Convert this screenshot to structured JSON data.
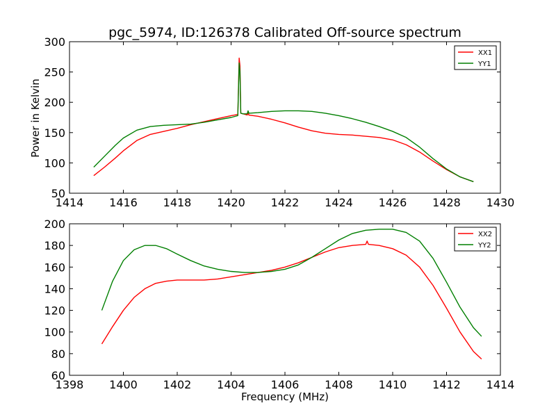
{
  "chart_data": [
    {
      "type": "line",
      "title": "pgc_5974, ID:126378 Calibrated Off-source spectrum",
      "xlabel": "",
      "ylabel": "Power in Kelvin",
      "xlim": [
        1414,
        1430
      ],
      "ylim": [
        50,
        300
      ],
      "xticks": [
        1414,
        1416,
        1418,
        1420,
        1422,
        1424,
        1426,
        1428,
        1430
      ],
      "yticks": [
        50,
        100,
        150,
        200,
        250,
        300
      ],
      "legend": "top-right",
      "series": [
        {
          "name": "XX1",
          "color": "#ff0000",
          "x": [
            1414.9,
            1415.3,
            1415.7,
            1416.0,
            1416.5,
            1417.0,
            1417.5,
            1418.0,
            1418.5,
            1419.0,
            1419.5,
            1420.0,
            1420.25,
            1420.3,
            1420.33,
            1420.36,
            1420.45,
            1420.6,
            1420.63,
            1420.66,
            1421.0,
            1421.5,
            1422.0,
            1422.5,
            1423.0,
            1423.5,
            1424.0,
            1424.5,
            1425.0,
            1425.5,
            1426.0,
            1426.5,
            1427.0,
            1427.5,
            1428.0,
            1428.5,
            1429.0
          ],
          "y": [
            79,
            93,
            108,
            120,
            137,
            147,
            152,
            157,
            163,
            168,
            173,
            178,
            180,
            273,
            260,
            182,
            181,
            179,
            183,
            179,
            177,
            172,
            166,
            159,
            153,
            149,
            147,
            146,
            144,
            142,
            138,
            130,
            118,
            103,
            89,
            77,
            69
          ]
        },
        {
          "name": "YY1",
          "color": "#007f00",
          "x": [
            1414.9,
            1415.3,
            1415.7,
            1416.0,
            1416.5,
            1417.0,
            1417.5,
            1418.0,
            1418.5,
            1419.0,
            1419.5,
            1420.0,
            1420.25,
            1420.3,
            1420.33,
            1420.36,
            1420.45,
            1420.6,
            1420.63,
            1420.66,
            1421.0,
            1421.5,
            1422.0,
            1422.5,
            1423.0,
            1423.5,
            1424.0,
            1424.5,
            1425.0,
            1425.5,
            1426.0,
            1426.5,
            1427.0,
            1427.5,
            1428.0,
            1428.5,
            1429.0
          ],
          "y": [
            93,
            111,
            129,
            141,
            154,
            160,
            162,
            163,
            164,
            167,
            171,
            175,
            178,
            265,
            250,
            182,
            181,
            181,
            186,
            182,
            183,
            185,
            186,
            186,
            185,
            182,
            178,
            173,
            167,
            160,
            152,
            142,
            126,
            107,
            90,
            77,
            69
          ]
        }
      ]
    },
    {
      "type": "line",
      "title": "",
      "xlabel": "Frequency (MHz)",
      "ylabel": "",
      "xlim": [
        1398,
        1414
      ],
      "ylim": [
        60,
        200
      ],
      "xticks": [
        1398,
        1400,
        1402,
        1404,
        1406,
        1408,
        1410,
        1412,
        1414
      ],
      "yticks": [
        60,
        80,
        100,
        120,
        140,
        160,
        180,
        200
      ],
      "legend": "top-right",
      "series": [
        {
          "name": "XX2",
          "color": "#ff0000",
          "x": [
            1399.2,
            1399.6,
            1400.0,
            1400.4,
            1400.8,
            1401.2,
            1401.6,
            1402.0,
            1402.5,
            1403.0,
            1403.5,
            1404.0,
            1404.5,
            1405.0,
            1405.5,
            1406.0,
            1406.5,
            1407.0,
            1407.5,
            1408.0,
            1408.5,
            1409.0,
            1409.05,
            1409.1,
            1409.5,
            1410.0,
            1410.5,
            1411.0,
            1411.5,
            1412.0,
            1412.5,
            1413.0,
            1413.3
          ],
          "y": [
            89,
            105,
            120,
            132,
            140,
            145,
            147,
            148,
            148,
            148,
            149,
            151,
            153,
            155,
            157,
            160,
            164,
            169,
            174,
            178,
            180,
            181,
            184,
            181,
            180,
            177,
            171,
            160,
            143,
            122,
            100,
            82,
            75
          ]
        },
        {
          "name": "YY2",
          "color": "#007f00",
          "x": [
            1399.2,
            1399.6,
            1400.0,
            1400.4,
            1400.8,
            1401.2,
            1401.6,
            1402.0,
            1402.5,
            1403.0,
            1403.5,
            1404.0,
            1404.5,
            1405.0,
            1405.5,
            1406.0,
            1406.5,
            1407.0,
            1407.5,
            1408.0,
            1408.5,
            1409.0,
            1409.5,
            1410.0,
            1410.5,
            1411.0,
            1411.5,
            1412.0,
            1412.5,
            1413.0,
            1413.3
          ],
          "y": [
            120,
            147,
            166,
            176,
            180,
            180,
            177,
            172,
            166,
            161,
            158,
            156,
            155,
            155,
            156,
            158,
            162,
            169,
            177,
            185,
            191,
            194,
            195,
            195,
            192,
            184,
            168,
            146,
            123,
            104,
            96
          ]
        }
      ]
    }
  ]
}
